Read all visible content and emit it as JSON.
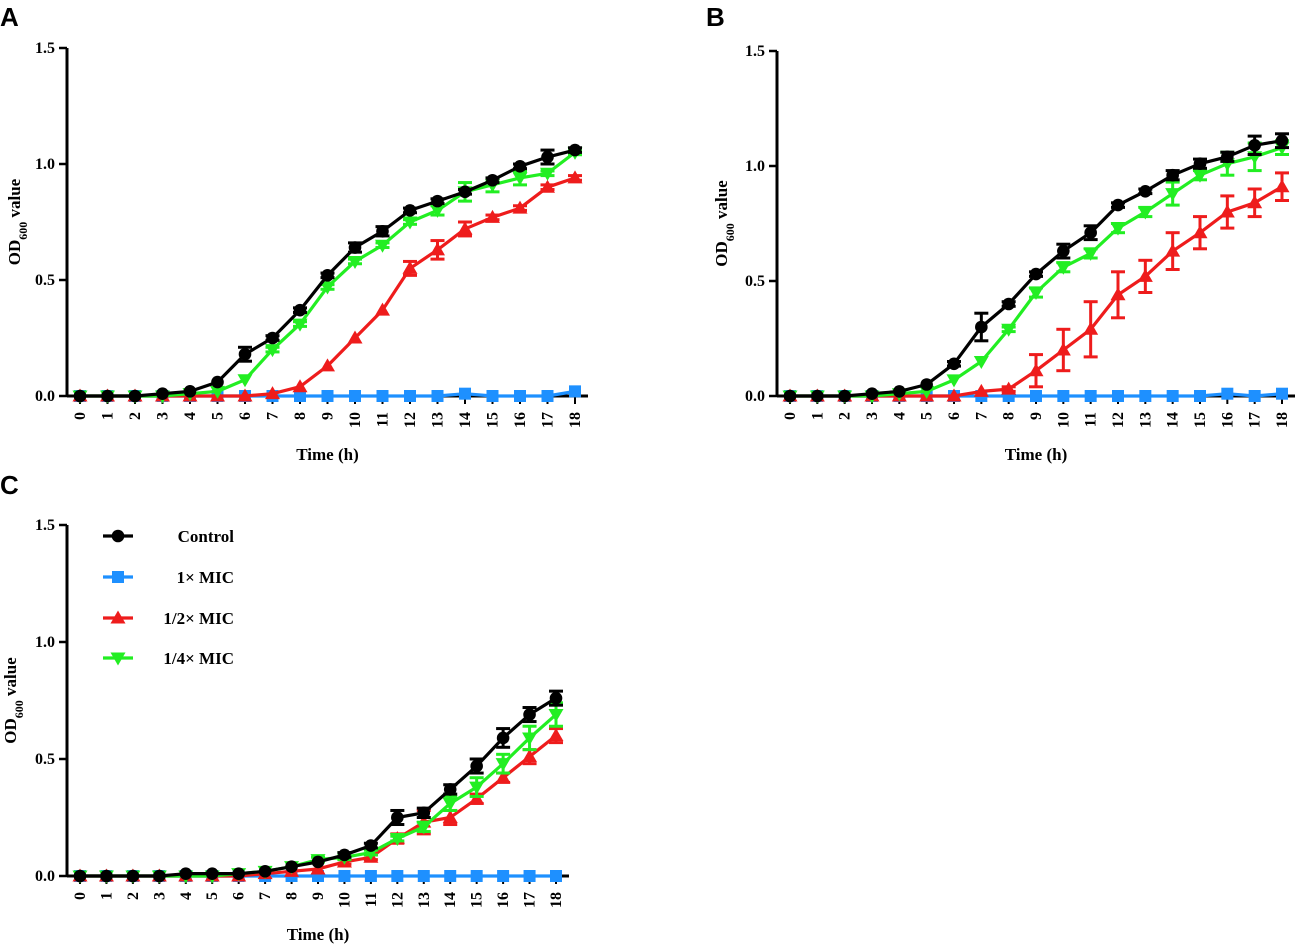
{
  "colors": {
    "Control": "#000000",
    "1× MIC": "#1E90FF",
    "1/2× MIC": "#EE1C1C",
    "1/4× MIC": "#22EE22",
    "axis": "#000000"
  },
  "legend": {
    "entries": [
      {
        "label": "Control",
        "marker": "circle"
      },
      {
        "label": "1× MIC",
        "marker": "square"
      },
      {
        "label": "1/2× MIC",
        "marker": "triangle-up"
      },
      {
        "label": "1/4× MIC",
        "marker": "triangle-down"
      }
    ]
  },
  "chart_data": [
    {
      "panel": "A",
      "type": "line",
      "xlabel": "Time (h)",
      "ylabel_main": "OD",
      "ylabel_sub": "600",
      "ylabel_rest": " value",
      "ylim": [
        0,
        1.5
      ],
      "yticks": [
        0.0,
        0.5,
        1.0,
        1.5
      ],
      "ytick_labels": [
        "0.0",
        "0.5",
        "1.0",
        "1.5"
      ],
      "x": [
        0,
        1,
        2,
        3,
        4,
        5,
        6,
        7,
        8,
        9,
        10,
        11,
        12,
        13,
        14,
        15,
        16,
        17,
        18
      ],
      "xtick_labels": [
        "0",
        "1",
        "2",
        "3",
        "4",
        "5",
        "6",
        "7",
        "8",
        "9",
        "10",
        "11",
        "12",
        "13",
        "14",
        "15",
        "16",
        "17",
        "18"
      ],
      "series": [
        {
          "name": "Control",
          "marker": "circle",
          "values": [
            0,
            0,
            0,
            0.01,
            0.02,
            0.06,
            0.18,
            0.25,
            0.37,
            0.52,
            0.64,
            0.71,
            0.8,
            0.84,
            0.88,
            0.93,
            0.99,
            1.03,
            1.06
          ],
          "errors": [
            0,
            0,
            0,
            0,
            0,
            0,
            0.03,
            0.01,
            0.01,
            0.01,
            0.02,
            0.02,
            0.01,
            0.01,
            0.01,
            0.01,
            0.01,
            0.03,
            0.01
          ]
        },
        {
          "name": "1× MIC",
          "marker": "square",
          "values": [
            0,
            0,
            0,
            0,
            0,
            0,
            0,
            0,
            0,
            0,
            0,
            0,
            0,
            0,
            0.01,
            0,
            0,
            0,
            0.02
          ],
          "errors": [
            0,
            0,
            0,
            0,
            0,
            0,
            0,
            0,
            0,
            0,
            0,
            0,
            0,
            0,
            0,
            0,
            0,
            0,
            0
          ]
        },
        {
          "name": "1/2× MIC",
          "marker": "triangle-up",
          "values": [
            0,
            0,
            0,
            0,
            0,
            0,
            0,
            0.01,
            0.04,
            0.13,
            0.25,
            0.37,
            0.55,
            0.63,
            0.72,
            0.77,
            0.81,
            0.9,
            0.94
          ],
          "errors": [
            0,
            0,
            0,
            0,
            0,
            0,
            0,
            0,
            0,
            0,
            0,
            0,
            0.03,
            0.04,
            0.03,
            0.01,
            0.01,
            0.01,
            0.01
          ]
        },
        {
          "name": "1/4× MIC",
          "marker": "triangle-down",
          "values": [
            0,
            0,
            0,
            0,
            0.01,
            0.02,
            0.07,
            0.2,
            0.31,
            0.47,
            0.58,
            0.65,
            0.75,
            0.8,
            0.88,
            0.91,
            0.94,
            0.96,
            1.05
          ],
          "errors": [
            0,
            0,
            0,
            0,
            0,
            0,
            0,
            0.01,
            0.01,
            0.01,
            0.01,
            0.01,
            0.01,
            0.02,
            0.04,
            0.03,
            0.03,
            0.01,
            0.01
          ]
        }
      ]
    },
    {
      "panel": "B",
      "type": "line",
      "xlabel": "Time (h)",
      "ylabel_main": "OD",
      "ylabel_sub": "600",
      "ylabel_rest": " value",
      "ylim": [
        0,
        1.5
      ],
      "yticks": [
        0.0,
        0.5,
        1.0,
        1.5
      ],
      "ytick_labels": [
        "0.0",
        "0.5",
        "1.0",
        "1.5"
      ],
      "x": [
        0,
        1,
        2,
        3,
        4,
        5,
        6,
        7,
        8,
        9,
        10,
        11,
        12,
        13,
        14,
        15,
        16,
        17,
        18
      ],
      "xtick_labels": [
        "0",
        "1",
        "2",
        "3",
        "4",
        "5",
        "6",
        "7",
        "8",
        "9",
        "10",
        "11",
        "12",
        "13",
        "14",
        "15",
        "16",
        "17",
        "18"
      ],
      "series": [
        {
          "name": "Control",
          "marker": "circle",
          "values": [
            0,
            0,
            0,
            0.01,
            0.02,
            0.05,
            0.14,
            0.3,
            0.4,
            0.53,
            0.63,
            0.71,
            0.83,
            0.89,
            0.96,
            1.01,
            1.04,
            1.09,
            1.11
          ],
          "errors": [
            0,
            0,
            0,
            0,
            0,
            0,
            0.01,
            0.06,
            0.01,
            0.01,
            0.03,
            0.03,
            0.01,
            0.01,
            0.02,
            0.02,
            0.02,
            0.04,
            0.03
          ]
        },
        {
          "name": "1× MIC",
          "marker": "square",
          "values": [
            0,
            0,
            0,
            0,
            0,
            0,
            0,
            0,
            0,
            0,
            0,
            0,
            0,
            0,
            0,
            0,
            0.01,
            0,
            0.01
          ],
          "errors": [
            0,
            0,
            0,
            0,
            0,
            0,
            0,
            0,
            0,
            0,
            0,
            0,
            0,
            0,
            0,
            0,
            0,
            0,
            0
          ]
        },
        {
          "name": "1/2× MIC",
          "marker": "triangle-up",
          "values": [
            0,
            0,
            0,
            0,
            0,
            0,
            0,
            0.02,
            0.03,
            0.11,
            0.2,
            0.29,
            0.44,
            0.52,
            0.63,
            0.71,
            0.8,
            0.84,
            0.91
          ],
          "errors": [
            0,
            0,
            0,
            0,
            0,
            0,
            0,
            0,
            0.01,
            0.07,
            0.09,
            0.12,
            0.1,
            0.07,
            0.08,
            0.07,
            0.07,
            0.06,
            0.06
          ]
        },
        {
          "name": "1/4× MIC",
          "marker": "triangle-down",
          "values": [
            0,
            0,
            0,
            0,
            0.01,
            0.02,
            0.07,
            0.15,
            0.29,
            0.45,
            0.56,
            0.62,
            0.73,
            0.8,
            0.88,
            0.96,
            1.01,
            1.04,
            1.08
          ],
          "errors": [
            0,
            0,
            0,
            0,
            0,
            0,
            0,
            0,
            0.01,
            0.02,
            0.02,
            0.02,
            0.02,
            0.02,
            0.05,
            0.02,
            0.05,
            0.06,
            0.03
          ]
        }
      ]
    },
    {
      "panel": "C",
      "type": "line",
      "xlabel": "Time (h)",
      "ylabel_main": "OD",
      "ylabel_sub": "600",
      "ylabel_rest": " value",
      "ylim": [
        0,
        1.5
      ],
      "yticks": [
        0.0,
        0.5,
        1.0,
        1.5
      ],
      "ytick_labels": [
        "0.0",
        "0.5",
        "1.0",
        "1.5"
      ],
      "x": [
        0,
        1,
        2,
        3,
        4,
        5,
        6,
        7,
        8,
        9,
        10,
        11,
        12,
        13,
        14,
        15,
        16,
        17,
        18
      ],
      "xtick_labels": [
        "0",
        "1",
        "2",
        "3",
        "4",
        "5",
        "6",
        "7",
        "8",
        "9",
        "10",
        "11",
        "12",
        "13",
        "14",
        "15",
        "16",
        "17",
        "18"
      ],
      "series": [
        {
          "name": "Control",
          "marker": "circle",
          "values": [
            0,
            0,
            0,
            0,
            0.01,
            0.01,
            0.01,
            0.02,
            0.04,
            0.06,
            0.09,
            0.13,
            0.25,
            0.27,
            0.37,
            0.47,
            0.59,
            0.69,
            0.76
          ],
          "errors": [
            0,
            0,
            0,
            0,
            0,
            0,
            0,
            0,
            0,
            0,
            0.01,
            0.01,
            0.03,
            0.02,
            0.02,
            0.03,
            0.04,
            0.03,
            0.03
          ]
        },
        {
          "name": "1× MIC",
          "marker": "square",
          "values": [
            0,
            0,
            0,
            0,
            0,
            0,
            0,
            0,
            0,
            0,
            0,
            0,
            0,
            0,
            0,
            0,
            0,
            0,
            0
          ],
          "errors": [
            0,
            0,
            0,
            0,
            0,
            0,
            0,
            0,
            0,
            0,
            0,
            0,
            0,
            0,
            0,
            0,
            0,
            0,
            0
          ]
        },
        {
          "name": "1/2× MIC",
          "marker": "triangle-up",
          "values": [
            0,
            0,
            0,
            0,
            0,
            0,
            0,
            0.01,
            0.02,
            0.03,
            0.06,
            0.08,
            0.16,
            0.23,
            0.25,
            0.33,
            0.42,
            0.51,
            0.6
          ],
          "errors": [
            0,
            0,
            0,
            0,
            0,
            0,
            0,
            0,
            0,
            0,
            0.01,
            0.01,
            0.02,
            0.05,
            0.03,
            0.02,
            0.02,
            0.03,
            0.03
          ]
        },
        {
          "name": "1/4× MIC",
          "marker": "triangle-down",
          "values": [
            0,
            0,
            0,
            0,
            0,
            0,
            0.01,
            0.02,
            0.04,
            0.07,
            0.08,
            0.1,
            0.16,
            0.21,
            0.31,
            0.38,
            0.48,
            0.59,
            0.69
          ],
          "errors": [
            0,
            0,
            0,
            0,
            0,
            0,
            0,
            0,
            0,
            0.01,
            0.01,
            0.01,
            0.01,
            0.02,
            0.03,
            0.04,
            0.04,
            0.05,
            0.05
          ]
        }
      ]
    }
  ]
}
